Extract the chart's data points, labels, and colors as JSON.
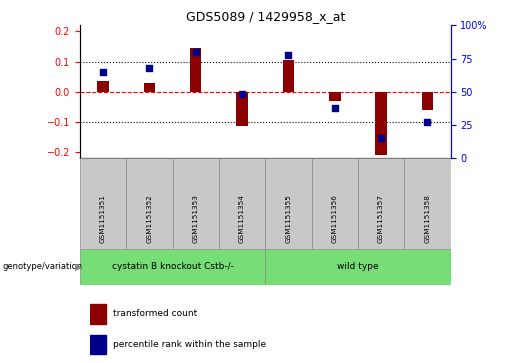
{
  "title": "GDS5089 / 1429958_x_at",
  "samples": [
    "GSM1151351",
    "GSM1151352",
    "GSM1151353",
    "GSM1151354",
    "GSM1151355",
    "GSM1151356",
    "GSM1151357",
    "GSM1151358"
  ],
  "transformed_count": [
    0.035,
    0.028,
    0.145,
    -0.113,
    0.105,
    -0.03,
    -0.21,
    -0.06
  ],
  "percentile_rank": [
    65,
    68,
    80,
    48,
    78,
    38,
    15,
    27
  ],
  "group1_indices": [
    0,
    1,
    2,
    3
  ],
  "group2_indices": [
    4,
    5,
    6,
    7
  ],
  "group1_label": "cystatin B knockout Cstb-/-",
  "group2_label": "wild type",
  "genotype_label": "genotype/variation",
  "legend1": "transformed count",
  "legend2": "percentile rank within the sample",
  "bar_color": "#8B0000",
  "dot_color": "#00008B",
  "ylim_left": [
    -0.22,
    0.22
  ],
  "ylim_right": [
    0,
    100
  ],
  "yticks_left": [
    -0.2,
    -0.1,
    0,
    0.1,
    0.2
  ],
  "yticks_right": [
    0,
    25,
    50,
    75,
    100
  ],
  "group1_color": "#77DD77",
  "group2_color": "#77DD77",
  "bar_width": 0.25,
  "sample_box_color": "#C8C8C8",
  "spine_color_left": "red",
  "spine_color_right": "blue"
}
